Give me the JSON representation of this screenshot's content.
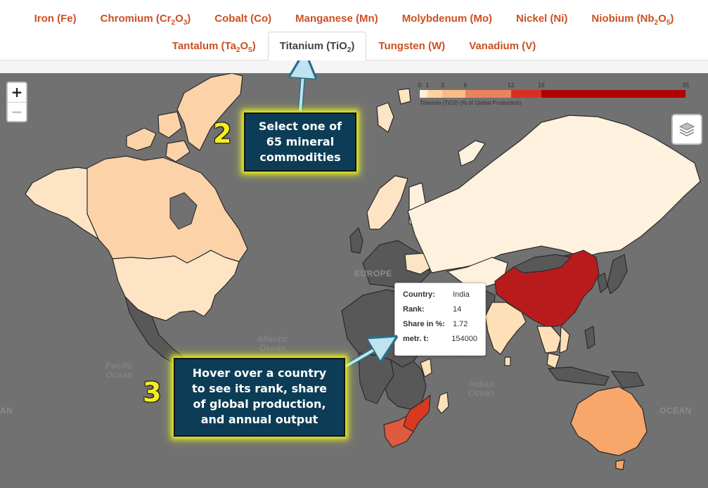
{
  "tabs": {
    "row1": [
      {
        "name": "Iron",
        "formula": "Fe"
      },
      {
        "name": "Chromium",
        "formula_main": "Cr",
        "sub1": "2",
        "mid": "O",
        "sub2": "3"
      },
      {
        "name": "Cobalt",
        "formula": "Co"
      },
      {
        "name": "Manganese",
        "formula": "Mn"
      },
      {
        "name": "Molybdenum",
        "formula": "Mo"
      },
      {
        "name": "Nickel",
        "formula": "Ni"
      },
      {
        "name": "Niobium",
        "formula_main": "Nb",
        "sub1": "2",
        "mid": "O",
        "sub2": "5"
      }
    ],
    "row2": [
      {
        "name": "Tantalum",
        "formula_main": "Ta",
        "sub1": "2",
        "mid": "O",
        "sub2": "5"
      },
      {
        "name": "Titanium",
        "formula_main": "TiO",
        "sub1": "2",
        "active": true
      },
      {
        "name": "Tungsten",
        "formula": "W"
      },
      {
        "name": "Vanadium",
        "formula": "V"
      }
    ]
  },
  "zoom": {
    "in_label": "+",
    "out_label": "−"
  },
  "legend": {
    "ticks": [
      "0",
      "1",
      "3",
      "6",
      "12",
      "16",
      "35"
    ],
    "tick_values": [
      0,
      1,
      3,
      6,
      12,
      16,
      35
    ],
    "max": 35,
    "colors": [
      "#fef0d9",
      "#fdd49e",
      "#fdbb84",
      "#e9835c",
      "#d7301f",
      "#b30000"
    ],
    "caption": "Titanium (TiO2) (% of Global Production)"
  },
  "map_colors": {
    "background": "#717171",
    "land_nodata": "#585858",
    "low": "#fdebd0",
    "lowmid": "#fdd49e",
    "mid": "#f8a76a",
    "high": "#e05a3f",
    "top": "#b81b1b",
    "tint_light": "#fef1dd"
  },
  "labels": {
    "europe": "EUROPE",
    "atlantic": "Atlantic\nOcean",
    "pacific": "Pacific\nOcean",
    "indian": "Indian\nOcean",
    "ocean_right": "OCEAN",
    "ocean_left": "AN"
  },
  "tooltip": {
    "rows": [
      {
        "key": "Country:",
        "value": "India"
      },
      {
        "key": "Rank:",
        "value": "14"
      },
      {
        "key": "Share in %:",
        "value": "1.72"
      },
      {
        "key": "metr. t:",
        "value": "154000"
      }
    ]
  },
  "callouts": {
    "step2": {
      "number": "2",
      "lines": [
        "Select one of",
        "65 mineral",
        "commodities"
      ]
    },
    "step3": {
      "number": "3",
      "lines": [
        "Hover over a country",
        "to see its rank, share",
        "of global production,",
        "and annual output"
      ]
    }
  },
  "icons": {
    "layers": "layers-icon"
  }
}
